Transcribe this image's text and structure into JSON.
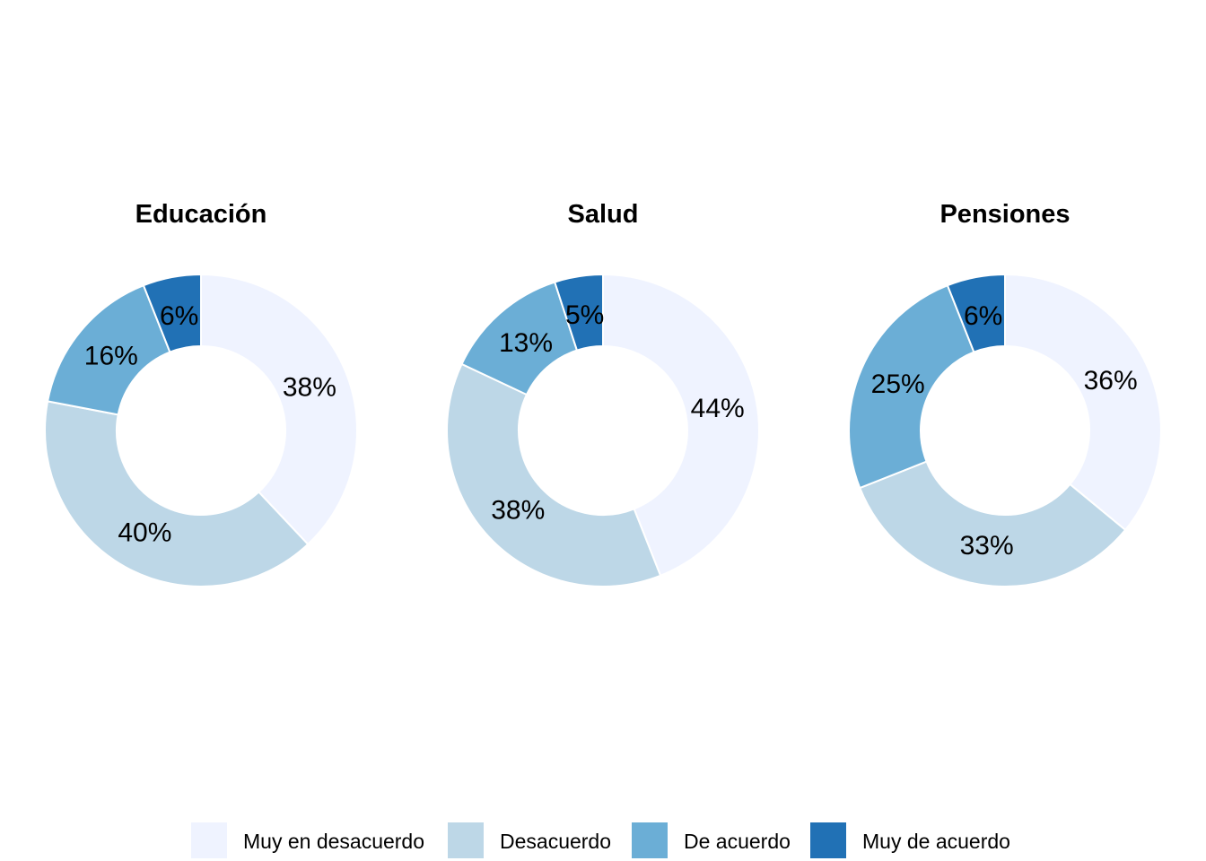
{
  "chart_data": {
    "type": "pie",
    "variant": "donut",
    "categories": [
      "Muy en desacuerdo",
      "Desacuerdo",
      "De acuerdo",
      "Muy de acuerdo"
    ],
    "colors": [
      "#eff3ff",
      "#bdd7e7",
      "#6baed6",
      "#2171b5"
    ],
    "charts": [
      {
        "title": "Educación",
        "values": [
          38,
          40,
          16,
          6
        ],
        "labels": [
          "38%",
          "40%",
          "16%",
          "6%"
        ]
      },
      {
        "title": "Salud",
        "values": [
          44,
          38,
          13,
          5
        ],
        "labels": [
          "44%",
          "38%",
          "13%",
          "5%"
        ]
      },
      {
        "title": "Pensiones",
        "values": [
          36,
          33,
          25,
          6
        ],
        "labels": [
          "36%",
          "33%",
          "25%",
          "6%"
        ]
      }
    ],
    "legend": {
      "position": "bottom",
      "entries": [
        "Muy en desacuerdo",
        "Desacuerdo",
        "De acuerdo",
        "Muy de acuerdo"
      ]
    }
  }
}
